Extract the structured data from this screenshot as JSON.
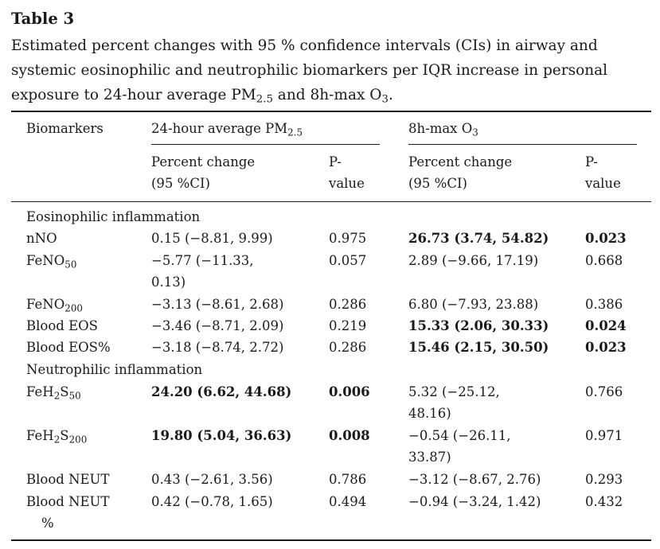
{
  "table": {
    "label": "Table 3",
    "caption": {
      "part1": "Estimated percent changes with 95 % confidence intervals (CIs) in airway and systemic eosinophilic and neutrophilic biomarkers per IQR increase in personal exposure to 24-hour average PM",
      "sub1": "2.5",
      "part2": " and 8h-max O",
      "sub2": "3",
      "part3": "."
    },
    "headers": {
      "biomarkers": "Biomarkers",
      "group1": {
        "text": "24-hour average PM",
        "sub": "2.5"
      },
      "group2": {
        "text": "8h-max O",
        "sub": "3"
      },
      "pct_line1": "Percent change",
      "pct_line2": "(95 %CI)",
      "p_line1": "P-",
      "p_line2": "value"
    },
    "sections": {
      "eosinophilic": "Eosinophilic inflammation",
      "neutrophilic": "Neutrophilic inflammation"
    },
    "rows": [
      {
        "name": "nNO",
        "sub": "",
        "pm_ci": "0.15 (−8.81, 9.99)",
        "pm_ci2": "",
        "pm_p": "0.975",
        "o3_ci": "26.73 (3.74, 54.82)",
        "o3_ci2": "",
        "o3_p": "0.023"
      },
      {
        "name": "FeNO",
        "sub": "50",
        "pm_ci": "−5.77 (−11.33,",
        "pm_ci2": "0.13)",
        "pm_p": "0.057",
        "o3_ci": "2.89 (−9.66, 17.19)",
        "o3_ci2": "",
        "o3_p": "0.668"
      },
      {
        "name": "FeNO",
        "sub": "200",
        "pm_ci": "−3.13 (−8.61, 2.68)",
        "pm_ci2": "",
        "pm_p": "0.286",
        "o3_ci": "6.80 (−7.93, 23.88)",
        "o3_ci2": "",
        "o3_p": "0.386"
      },
      {
        "name": "Blood EOS",
        "sub": "",
        "pm_ci": "−3.46 (−8.71, 2.09)",
        "pm_ci2": "",
        "pm_p": "0.219",
        "o3_ci": "15.33 (2.06, 30.33)",
        "o3_ci2": "",
        "o3_p": "0.024"
      },
      {
        "name": "Blood EOS%",
        "sub": "",
        "pm_ci": "−3.18 (−8.74, 2.72)",
        "pm_ci2": "",
        "pm_p": "0.286",
        "o3_ci": "15.46 (2.15, 30.50)",
        "o3_ci2": "",
        "o3_p": "0.023"
      },
      {
        "name": "FeH",
        "sub": "2",
        "name2": "S",
        "sub2": "50",
        "pm_ci": "24.20 (6.62, 44.68)",
        "pm_ci2": "",
        "pm_p": "0.006",
        "o3_ci": "5.32 (−25.12,",
        "o3_ci2": "48.16)",
        "o3_p": "0.766"
      },
      {
        "name": "FeH",
        "sub": "2",
        "name2": "S",
        "sub2": "200",
        "pm_ci": "19.80 (5.04, 36.63)",
        "pm_ci2": "",
        "pm_p": "0.008",
        "o3_ci": "−0.54 (−26.11,",
        "o3_ci2": "33.87)",
        "o3_p": "0.971"
      },
      {
        "name": "Blood NEUT",
        "sub": "",
        "pm_ci": "0.43 (−2.61, 3.56)",
        "pm_ci2": "",
        "pm_p": "0.786",
        "o3_ci": "−3.12 (−8.67, 2.76)",
        "o3_ci2": "",
        "o3_p": "0.293"
      },
      {
        "name": "Blood NEUT",
        "sub": "",
        "name_line2": "%",
        "pm_ci": "0.42 (−0.78, 1.65)",
        "pm_ci2": "",
        "pm_p": "0.494",
        "o3_ci": "−0.94 (−3.24, 1.42)",
        "o3_ci2": "",
        "o3_p": "0.432"
      }
    ]
  }
}
